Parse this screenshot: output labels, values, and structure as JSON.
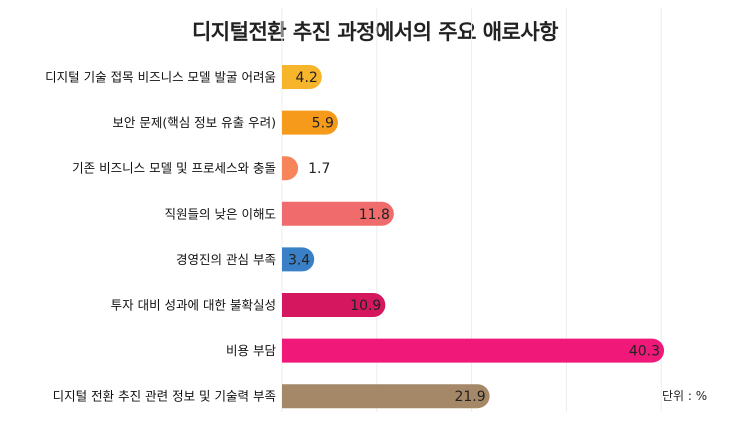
{
  "chart_data": {
    "type": "bar",
    "orientation": "horizontal",
    "title": "디지털전환 추진 과정에서의 주요 애로사항",
    "unit_label": "단위 : %",
    "categories": [
      "디지털 기술 접목 비즈니스 모델 발굴 어려움",
      "보안 문제(핵심 정보 유출 우려)",
      "기존 비즈니스 모델 및 프로세스와 충돌",
      "직원들의 낮은 이해도",
      "경영진의 관심 부족",
      "투자 대비 성과에 대한 불확실성",
      "비용 부담",
      "디지털 전환 추진 관련 정보 및 기술력 부족"
    ],
    "values": [
      4.2,
      5.9,
      1.7,
      11.8,
      3.4,
      10.9,
      40.3,
      21.9
    ],
    "value_labels": [
      "4.2",
      "5.9",
      "1.7",
      "11.8",
      "3.4",
      "10.9",
      "40.3",
      "21.9"
    ],
    "colors": [
      "#F7B52C",
      "#F59A1B",
      "#F7855A",
      "#F06B6B",
      "#3A80C6",
      "#D4175F",
      "#F0197A",
      "#A48868"
    ],
    "xlim": [
      0,
      43
    ],
    "grid": true,
    "legend": "none"
  }
}
